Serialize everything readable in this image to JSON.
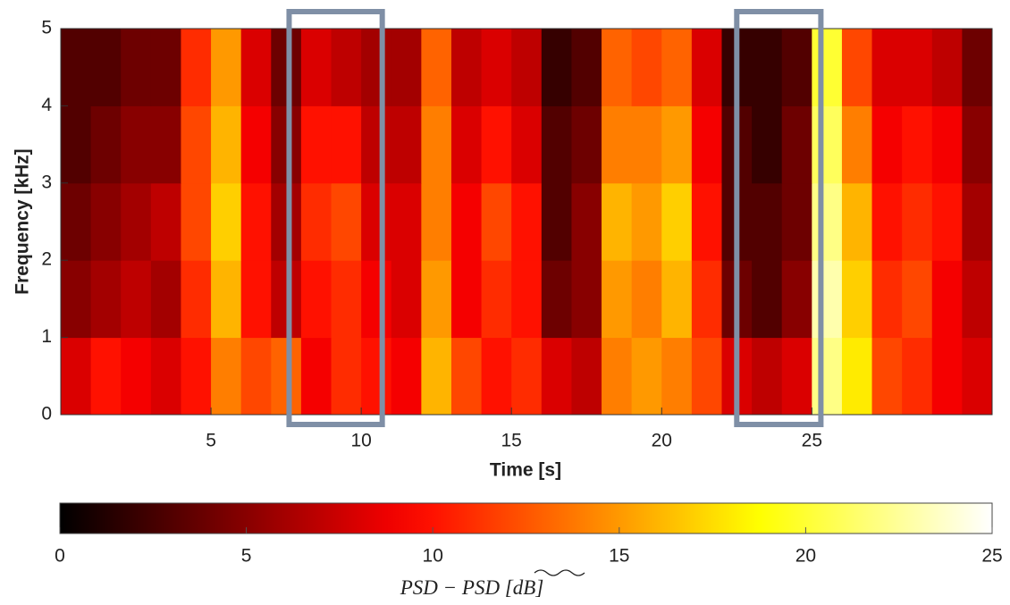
{
  "chart_data": {
    "type": "heatmap",
    "xlabel": "Time [s]",
    "ylabel": "Frequency [kHz]",
    "xlim": [
      0,
      31
    ],
    "xticks": [
      5,
      10,
      15,
      20,
      25
    ],
    "ylim": [
      0,
      5
    ],
    "yticks": [
      0,
      1,
      2,
      3,
      4,
      5
    ],
    "colormap": "hot",
    "z": [
      [
        8,
        10,
        9,
        8,
        10,
        14,
        12,
        13,
        9,
        11,
        10,
        9,
        16,
        12,
        10,
        11,
        8,
        7,
        14,
        15,
        14,
        12,
        8,
        7,
        8,
        22,
        18,
        12,
        11,
        9,
        8
      ],
      [
        5,
        6,
        7,
        6,
        11,
        16,
        10,
        7,
        10,
        11,
        9,
        8,
        15,
        9,
        11,
        10,
        4,
        5,
        15,
        14,
        16,
        11,
        4,
        3,
        5,
        23,
        17,
        11,
        12,
        9,
        7
      ],
      [
        4,
        5,
        6,
        7,
        12,
        17,
        10,
        6,
        11,
        12,
        8,
        8,
        14,
        9,
        12,
        10,
        3,
        5,
        16,
        15,
        17,
        10,
        3,
        3,
        4,
        22,
        16,
        10,
        11,
        10,
        6
      ],
      [
        3,
        4,
        5,
        5,
        12,
        16,
        9,
        5,
        10,
        10,
        7,
        7,
        14,
        8,
        10,
        8,
        3,
        4,
        14,
        14,
        15,
        9,
        3,
        2,
        4,
        21,
        14,
        9,
        10,
        9,
        5
      ],
      [
        3,
        3,
        4,
        4,
        11,
        15,
        8,
        4,
        8,
        7,
        6,
        6,
        13,
        7,
        8,
        7,
        2,
        3,
        13,
        12,
        13,
        8,
        2,
        2,
        3,
        20,
        12,
        8,
        8,
        7,
        4
      ]
    ],
    "highlight_boxes": [
      {
        "xlim": [
          7.6,
          10.7
        ]
      },
      {
        "xlim": [
          22.5,
          25.3
        ]
      }
    ],
    "highlight_color": "#7f8fa6",
    "colorbar": {
      "lim": [
        0,
        25
      ],
      "ticks": [
        0,
        5,
        10,
        15,
        20,
        25
      ],
      "label": [
        "PSD − ",
        "PSD",
        " [dB]"
      ]
    }
  }
}
